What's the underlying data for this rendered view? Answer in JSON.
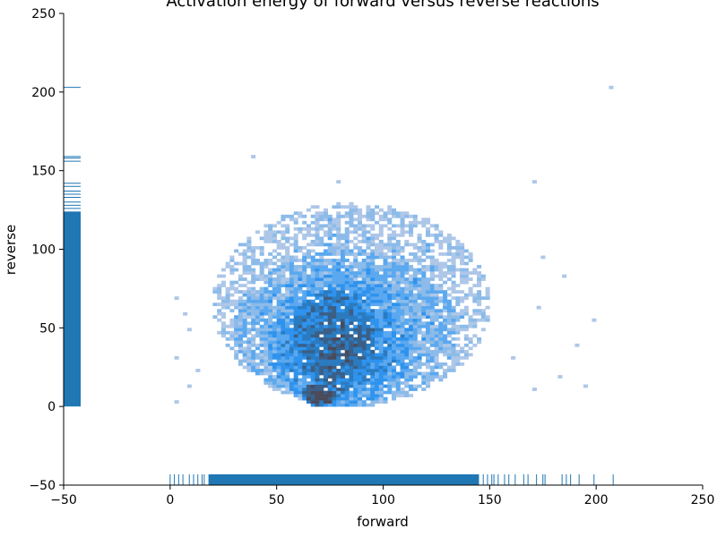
{
  "chart_data": {
    "type": "heatmap",
    "title": "Activation energy of forward versus reverse reactions",
    "xlabel": "forward",
    "ylabel": "reverse",
    "xlim": [
      -50,
      250
    ],
    "ylim": [
      -50,
      250
    ],
    "xticks": [
      -50,
      0,
      50,
      100,
      150,
      200,
      250
    ],
    "yticks": [
      -50,
      0,
      50,
      100,
      150,
      200,
      250
    ],
    "grid": false,
    "legend": "none",
    "bin_size": [
      2.0,
      2.0
    ],
    "density_colors": [
      "#aec7e8",
      "#8cbbe9",
      "#5aa8ef",
      "#2f93ee",
      "#2b7bc0",
      "#3b5f86",
      "#4a4a5a"
    ],
    "rug_color": "#1f77b4",
    "density_regions": [
      {
        "x_range": [
          20,
          150
        ],
        "y_range": [
          0,
          130
        ],
        "level": 0.15
      },
      {
        "x_range": [
          30,
          135
        ],
        "y_range": [
          0,
          100
        ],
        "level": 0.35
      },
      {
        "x_range": [
          45,
          115
        ],
        "y_range": [
          0,
          80
        ],
        "level": 0.55
      },
      {
        "x_range": [
          55,
          100
        ],
        "y_range": [
          5,
          75
        ],
        "level": 0.75
      },
      {
        "x_range": [
          62,
          78
        ],
        "y_range": [
          0,
          15
        ],
        "level": 0.95
      }
    ],
    "outlier_points": [
      {
        "x": 207,
        "y": 202
      },
      {
        "x": 38,
        "y": 158
      },
      {
        "x": 78,
        "y": 142
      },
      {
        "x": 170,
        "y": 142
      },
      {
        "x": 175,
        "y": 95
      },
      {
        "x": 185,
        "y": 82
      },
      {
        "x": 199,
        "y": 55
      },
      {
        "x": 190,
        "y": 38
      },
      {
        "x": 183,
        "y": 18
      },
      {
        "x": 194,
        "y": 12
      },
      {
        "x": 2,
        "y": 68
      },
      {
        "x": 2,
        "y": 30
      },
      {
        "x": 6,
        "y": 58
      },
      {
        "x": 9,
        "y": 48
      },
      {
        "x": 12,
        "y": 22
      },
      {
        "x": 8,
        "y": 12
      },
      {
        "x": 2,
        "y": 2
      },
      {
        "x": 170,
        "y": 10
      },
      {
        "x": 160,
        "y": 30
      },
      {
        "x": 172,
        "y": 62
      }
    ],
    "rug_x": {
      "dense_range": [
        18,
        145
      ],
      "sparse": [
        0,
        2,
        4,
        6,
        9,
        11,
        13,
        15,
        16,
        147,
        149,
        151,
        152,
        154,
        157,
        159,
        162,
        166,
        168,
        172,
        175,
        176,
        184,
        186,
        188,
        192,
        199,
        208
      ]
    },
    "rug_y": {
      "dense_range": [
        0,
        124
      ],
      "sparse": [
        126,
        128,
        130,
        133,
        135,
        137,
        140,
        142,
        156,
        158,
        159,
        203
      ]
    }
  }
}
